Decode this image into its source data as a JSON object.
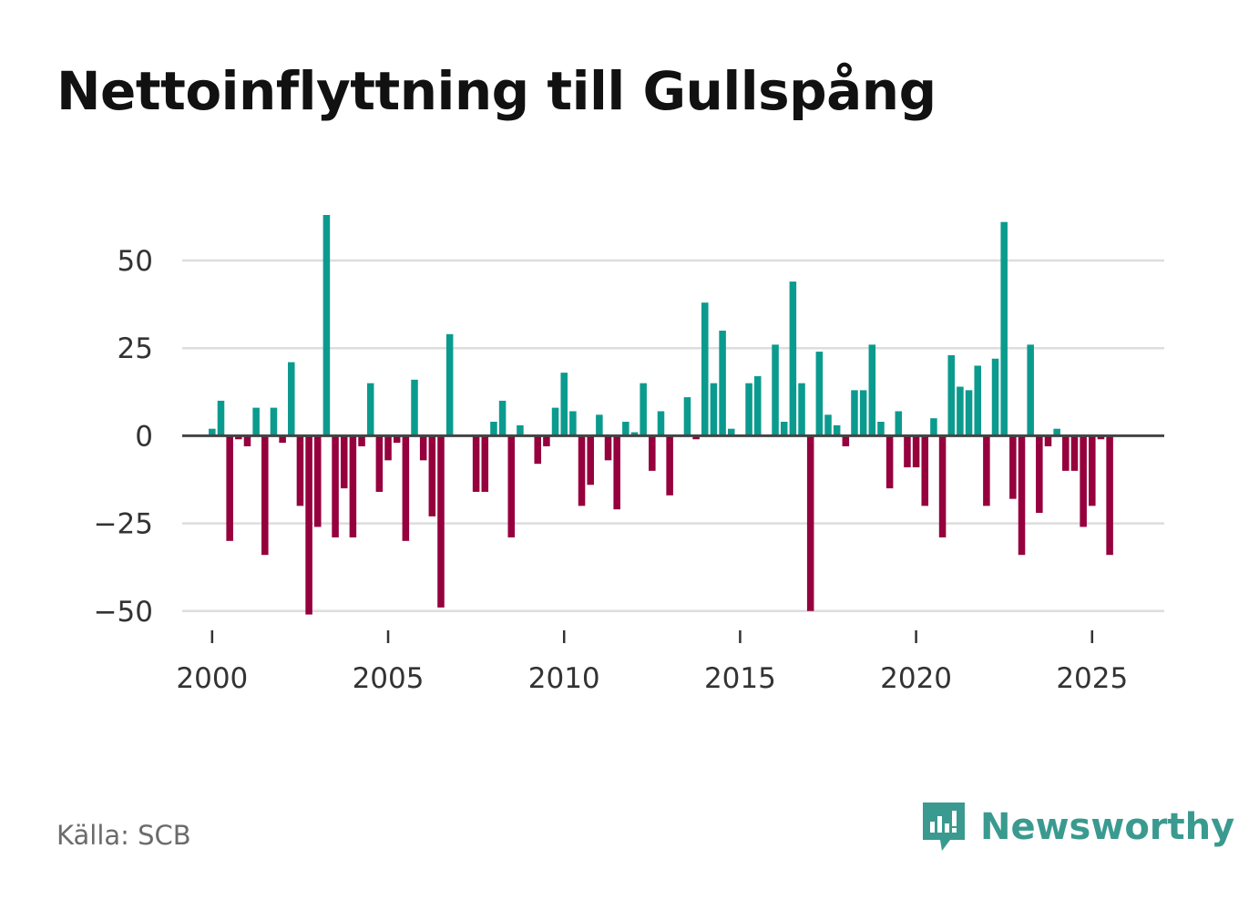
{
  "chart_data": {
    "type": "bar",
    "title": "Nettoinflyttning till Gullspång",
    "xlabel": "",
    "ylabel": "",
    "xlim": [
      1999.15,
      2027.05
    ],
    "ylim": [
      -55,
      63
    ],
    "yticks": [
      50,
      25,
      0,
      -25,
      -50
    ],
    "ytick_labels": [
      "50",
      "25",
      "0",
      "−25",
      "−50"
    ],
    "xticks": [
      2000,
      2005,
      2010,
      2015,
      2020,
      2025
    ],
    "xtick_labels": [
      "2000",
      "2005",
      "2010",
      "2015",
      "2020",
      "2025"
    ],
    "grid": true,
    "positive_color": "#0b9b8e",
    "negative_color": "#95003d",
    "zero_line_color": "#444444",
    "grid_color": "#dddddd",
    "start_quarter": "2000-Q1",
    "values": [
      2,
      10,
      -30,
      -1,
      -3,
      8,
      -34,
      8,
      -2,
      21,
      -20,
      -51,
      -26,
      63,
      -29,
      -15,
      -29,
      -3,
      15,
      -16,
      -7,
      -2,
      -30,
      16,
      -7,
      -23,
      -49,
      29,
      0,
      0,
      -16,
      -16,
      4,
      10,
      -29,
      3,
      0,
      -8,
      -3,
      8,
      18,
      7,
      -20,
      -14,
      6,
      -7,
      -21,
      4,
      1,
      15,
      -10,
      7,
      -17,
      0,
      11,
      -1,
      38,
      15,
      30,
      2,
      0,
      15,
      17,
      0,
      26,
      4,
      44,
      15,
      -50,
      24,
      6,
      3,
      -3,
      13,
      13,
      26,
      4,
      -15,
      7,
      -9,
      -9,
      -20,
      5,
      -29,
      23,
      14,
      13,
      20,
      -20,
      22,
      61,
      -18,
      -34,
      26,
      -22,
      -3,
      2,
      -10,
      -10,
      -26,
      -20,
      -1,
      -34
    ]
  },
  "footer": {
    "source": "Källa: SCB",
    "brand": "Newsworthy",
    "brand_color": "#3a9a8f",
    "logo_icon": "newsworthy-logo-icon"
  }
}
